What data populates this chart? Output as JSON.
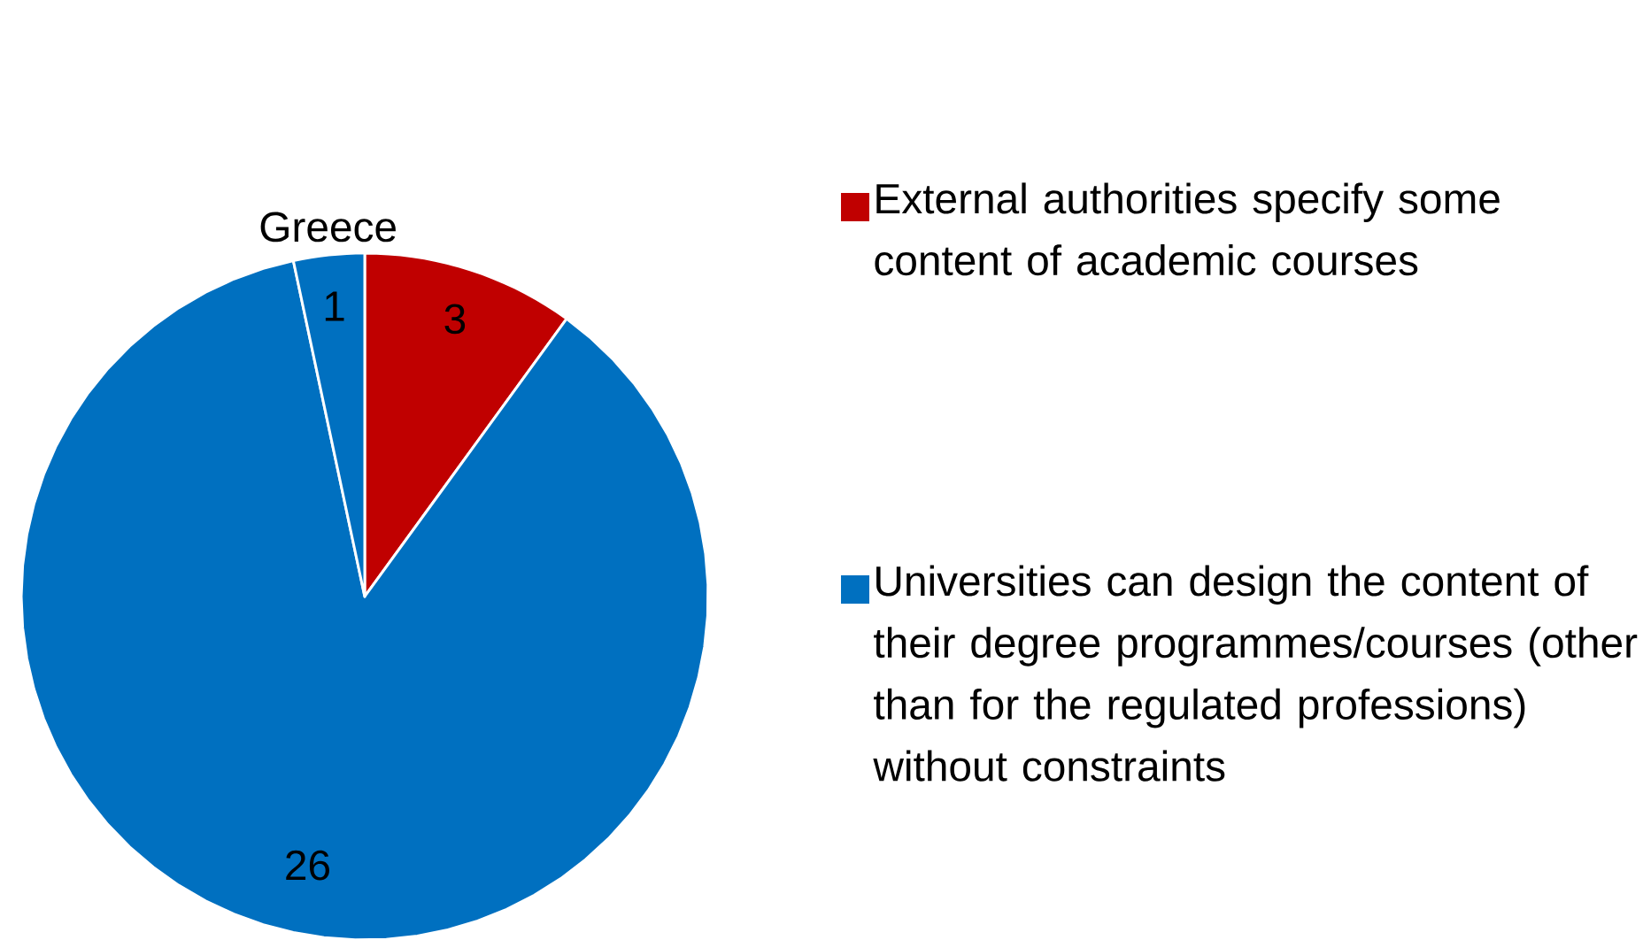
{
  "chart_data": {
    "type": "pie",
    "categories": [
      "External authorities specify some content of academic courses",
      "Universities can design the content of their degree programmes/courses (other than for the regulated professions) without constraints",
      "Greece"
    ],
    "values": [
      3,
      26,
      1
    ],
    "colors": [
      "#c00000",
      "#0070c0",
      "#0070c0"
    ],
    "data_labels": true,
    "legend": "right"
  }
}
